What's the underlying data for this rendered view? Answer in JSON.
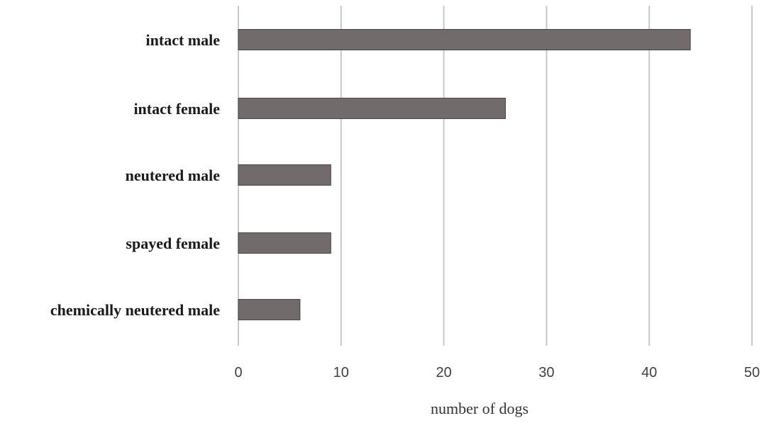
{
  "chart_data": {
    "type": "bar",
    "orientation": "horizontal",
    "categories": [
      "intact male",
      "intact female",
      "neutered male",
      "spayed female",
      "chemically neutered male"
    ],
    "values": [
      44,
      26,
      9,
      9,
      6
    ],
    "title": "",
    "xlabel": "number of dogs",
    "ylabel": "",
    "xlim": [
      0,
      50
    ],
    "xticks": [
      "0",
      "10",
      "20",
      "30",
      "40",
      "50"
    ],
    "grid": "vertical",
    "legend": "none",
    "colors": {
      "bar": "#716b6b",
      "bar_edge": "#4a4545",
      "grid": "#c8c8c8"
    }
  }
}
